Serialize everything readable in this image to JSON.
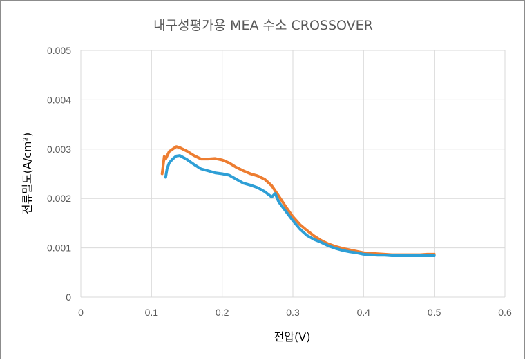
{
  "chart_data": {
    "type": "line",
    "title": "내구성평가용 MEA 수소 CROSSOVER",
    "xlabel": "전압(V)",
    "ylabel": "전류밀도(A/cm²)",
    "xlim": [
      0,
      0.6
    ],
    "ylim": [
      0,
      0.005
    ],
    "x_ticks": [
      "0",
      "0.1",
      "0.2",
      "0.3",
      "0.4",
      "0.5",
      "0.6"
    ],
    "y_ticks": [
      "0",
      "0.001",
      "0.002",
      "0.003",
      "0.004",
      "0.005"
    ],
    "grid": true,
    "legend": "none",
    "series": [
      {
        "color": "#ED7D31",
        "x": [
          0.115,
          0.118,
          0.12,
          0.125,
          0.13,
          0.135,
          0.14,
          0.15,
          0.16,
          0.17,
          0.18,
          0.19,
          0.2,
          0.21,
          0.22,
          0.23,
          0.24,
          0.25,
          0.26,
          0.27,
          0.28,
          0.29,
          0.3,
          0.31,
          0.32,
          0.33,
          0.34,
          0.35,
          0.36,
          0.37,
          0.38,
          0.39,
          0.4,
          0.41,
          0.42,
          0.43,
          0.44,
          0.45,
          0.46,
          0.47,
          0.48,
          0.49,
          0.5
        ],
        "y": [
          0.0025,
          0.00285,
          0.0028,
          0.00295,
          0.003,
          0.00305,
          0.00303,
          0.00296,
          0.00287,
          0.0028,
          0.0028,
          0.00281,
          0.00278,
          0.00272,
          0.00263,
          0.00256,
          0.0025,
          0.00246,
          0.00239,
          0.00226,
          0.00205,
          0.00183,
          0.00163,
          0.00147,
          0.00135,
          0.00124,
          0.00115,
          0.00108,
          0.00103,
          0.00099,
          0.00096,
          0.00093,
          0.0009,
          0.00089,
          0.00088,
          0.00087,
          0.00086,
          0.00086,
          0.00086,
          0.00086,
          0.00086,
          0.00087,
          0.00087
        ]
      },
      {
        "color": "#2E9FD6",
        "x": [
          0.12,
          0.122,
          0.125,
          0.13,
          0.135,
          0.14,
          0.15,
          0.16,
          0.17,
          0.18,
          0.19,
          0.2,
          0.21,
          0.22,
          0.23,
          0.24,
          0.25,
          0.26,
          0.27,
          0.275,
          0.28,
          0.29,
          0.3,
          0.31,
          0.32,
          0.33,
          0.34,
          0.35,
          0.36,
          0.37,
          0.38,
          0.39,
          0.4,
          0.41,
          0.42,
          0.43,
          0.44,
          0.45,
          0.46,
          0.47,
          0.48,
          0.49,
          0.5
        ],
        "y": [
          0.00243,
          0.0026,
          0.00272,
          0.0028,
          0.00286,
          0.00287,
          0.00279,
          0.00269,
          0.0026,
          0.00256,
          0.00252,
          0.0025,
          0.00247,
          0.00239,
          0.00231,
          0.00227,
          0.00222,
          0.00214,
          0.00203,
          0.0021,
          0.00193,
          0.00174,
          0.00155,
          0.00138,
          0.00125,
          0.00117,
          0.00111,
          0.00104,
          0.00099,
          0.00095,
          0.00092,
          0.0009,
          0.00087,
          0.00086,
          0.00085,
          0.00085,
          0.00084,
          0.00084,
          0.00084,
          0.00084,
          0.00084,
          0.00084,
          0.00084
        ]
      }
    ]
  }
}
